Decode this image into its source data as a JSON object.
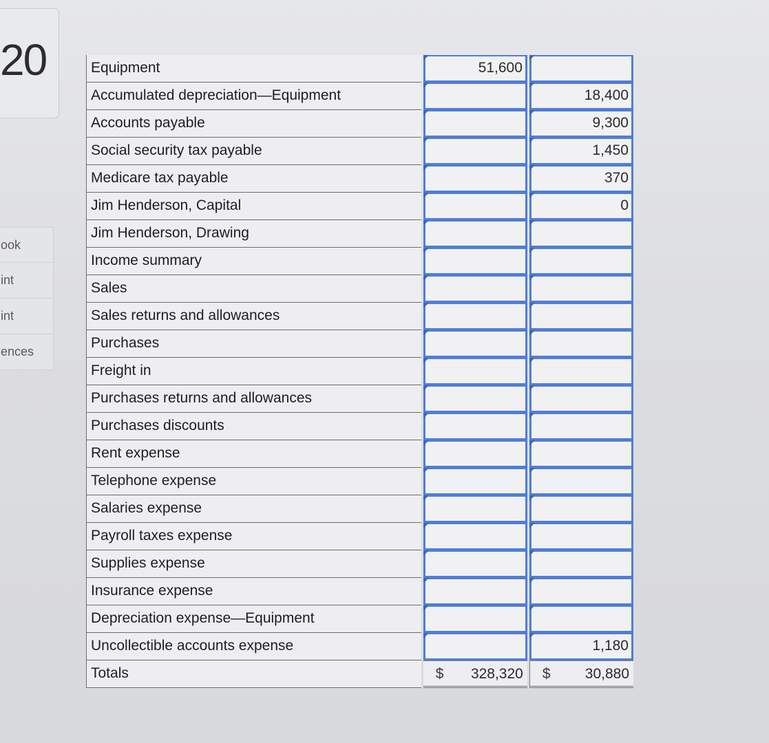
{
  "score": {
    "text": "20"
  },
  "side_menu": [
    "ook",
    "int",
    "int",
    "ences"
  ],
  "accounts": [
    {
      "name": "Equipment",
      "debit": "51,600",
      "credit": ""
    },
    {
      "name": "Accumulated depreciation—Equipment",
      "debit": "",
      "credit": "18,400"
    },
    {
      "name": "Accounts payable",
      "debit": "",
      "credit": "9,300"
    },
    {
      "name": "Social security tax payable",
      "debit": "",
      "credit": "1,450"
    },
    {
      "name": "Medicare tax payable",
      "debit": "",
      "credit": "370"
    },
    {
      "name": "Jim Henderson, Capital",
      "debit": "",
      "credit": "0"
    },
    {
      "name": "Jim Henderson, Drawing",
      "debit": "",
      "credit": ""
    },
    {
      "name": "Income summary",
      "debit": "",
      "credit": ""
    },
    {
      "name": "Sales",
      "debit": "",
      "credit": ""
    },
    {
      "name": "Sales returns and allowances",
      "debit": "",
      "credit": ""
    },
    {
      "name": "Purchases",
      "debit": "",
      "credit": ""
    },
    {
      "name": "Freight in",
      "debit": "",
      "credit": ""
    },
    {
      "name": "Purchases returns and allowances",
      "debit": "",
      "credit": ""
    },
    {
      "name": "Purchases discounts",
      "debit": "",
      "credit": ""
    },
    {
      "name": "Rent expense",
      "debit": "",
      "credit": ""
    },
    {
      "name": "Telephone expense",
      "debit": "",
      "credit": ""
    },
    {
      "name": "Salaries expense",
      "debit": "",
      "credit": ""
    },
    {
      "name": "Payroll taxes expense",
      "debit": "",
      "credit": ""
    },
    {
      "name": "Supplies expense",
      "debit": "",
      "credit": ""
    },
    {
      "name": "Insurance expense",
      "debit": "",
      "credit": ""
    },
    {
      "name": "Depreciation expense—Equipment",
      "debit": "",
      "credit": ""
    },
    {
      "name": "Uncollectible accounts expense",
      "debit": "",
      "credit": "1,180"
    }
  ],
  "totals": {
    "label": "Totals",
    "debit_symbol": "$",
    "debit": "328,320",
    "credit_symbol": "$",
    "credit": "30,880"
  }
}
